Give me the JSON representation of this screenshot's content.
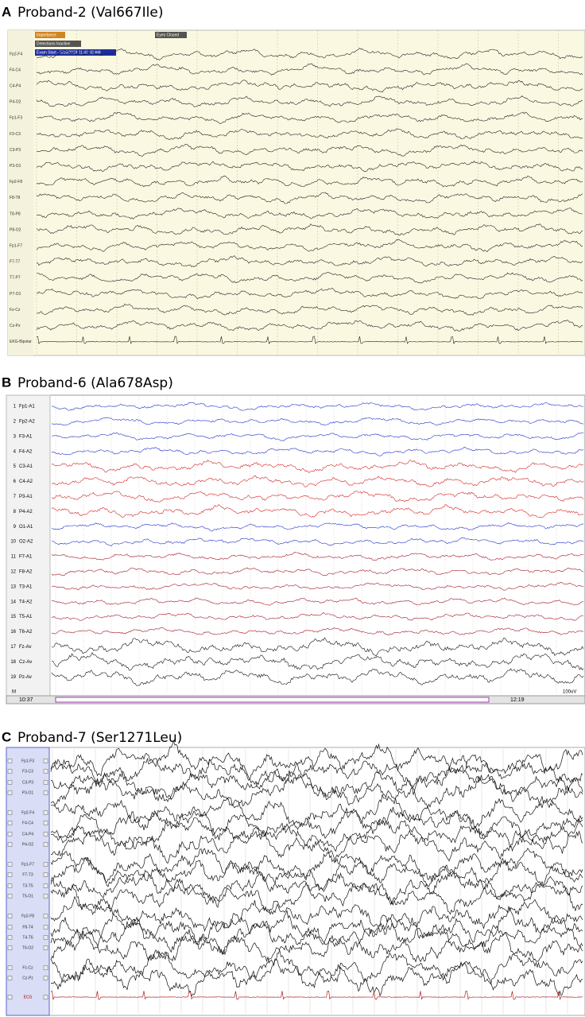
{
  "panels": [
    {
      "label": "A",
      "title": "Proband-2 (Val667Ile)",
      "tags": [
        "Impedance",
        "Eyes Closed",
        "Detections Inactive",
        "Exam Start - 5/15/2018 11:41:48 AM"
      ],
      "channels": [
        "Fp2-F4",
        "F4-C4",
        "C4-P4",
        "P4-O2",
        "Fp1-F3",
        "F3-C3",
        "C3-P3",
        "P3-O1",
        "Fp2-F8",
        "F8-T8",
        "T8-P8",
        "P8-O2",
        "Fp1-F7",
        "F7-T7",
        "T7-P7",
        "P7-O1",
        "Fz-Cz",
        "Cz-Pz",
        "EKG-Bipolar"
      ]
    },
    {
      "label": "B",
      "title": "Proband-6 (Ala678Asp)",
      "channels": [
        {
          "number": 1,
          "name": "Fp1-A1"
        },
        {
          "number": 2,
          "name": "Fp2-A2"
        },
        {
          "number": 3,
          "name": "F3-A1"
        },
        {
          "number": 4,
          "name": "F4-A2"
        },
        {
          "number": 5,
          "name": "C3-A1"
        },
        {
          "number": 6,
          "name": "C4-A2"
        },
        {
          "number": 7,
          "name": "P3-A1"
        },
        {
          "number": 8,
          "name": "P4-A2"
        },
        {
          "number": 9,
          "name": "O1-A1"
        },
        {
          "number": 10,
          "name": "O2-A2"
        },
        {
          "number": 11,
          "name": "F7-A1"
        },
        {
          "number": 12,
          "name": "F8-A2"
        },
        {
          "number": 13,
          "name": "T3-A1"
        },
        {
          "number": 14,
          "name": "T4-A2"
        },
        {
          "number": 15,
          "name": "T5-A1"
        },
        {
          "number": 16,
          "name": "T6-A2"
        },
        {
          "number": 17,
          "name": "Fz-Av"
        },
        {
          "number": 18,
          "name": "Cz-Av"
        },
        {
          "number": 19,
          "name": "Pz-Av"
        },
        {
          "number": "M"
        }
      ],
      "time_start": "10:37",
      "time_end": "12:19",
      "scale": "100uV"
    },
    {
      "label": "C",
      "title": "Proband-7 (Ser1271Leu)",
      "channels": [
        "Fp1-F3",
        "F3-C3",
        "C3-P3",
        "P3-O1",
        "Fp2-F4",
        "F4-C4",
        "C4-P4",
        "P4-O2",
        "Fp1-F7",
        "F7-T3",
        "T3-T5",
        "T5-O1",
        "Fp2-F8",
        "F8-T4",
        "T4-T6",
        "T6-O2",
        "Fz-Cz",
        "Cz-Pz",
        "ECG"
      ]
    }
  ]
}
